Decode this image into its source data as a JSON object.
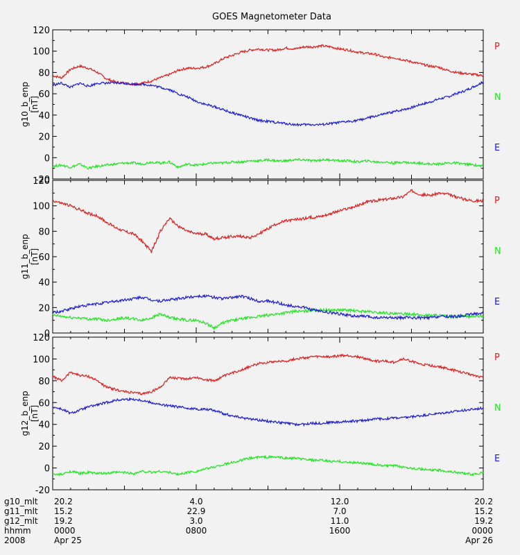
{
  "title": "GOES Magnetometer Data",
  "colors": {
    "P": "#e01b1b",
    "N": "#1ee61e",
    "E": "#1a1ad6",
    "frame": "#000000",
    "background": "#f2f2f2"
  },
  "chart_data": [
    {
      "type": "line",
      "ylabel": "g10_b_enp",
      "yunits": "[nT]",
      "ylim": [
        -20,
        120
      ],
      "yticks": [
        -20,
        0,
        20,
        40,
        60,
        80,
        100,
        120
      ],
      "xlabel": "hhmm",
      "xlim": [
        0,
        24
      ],
      "legend_placement": "right",
      "legend": [
        "P",
        "N",
        "E"
      ],
      "series": [
        {
          "name": "P",
          "color": "#e01b1b",
          "x": [
            0,
            0.5,
            1,
            1.5,
            2,
            2.5,
            3,
            3.5,
            4,
            4.5,
            5,
            5.5,
            6,
            6.5,
            7,
            7.5,
            8,
            8.5,
            9,
            9.5,
            10,
            10.5,
            11,
            11.5,
            12,
            12.5,
            13,
            13.5,
            14,
            14.5,
            15,
            15.5,
            16,
            16.5,
            17,
            17.5,
            18,
            18.5,
            19,
            19.5,
            20,
            20.5,
            21,
            21.5,
            22,
            22.5,
            23,
            23.5,
            24
          ],
          "y": [
            77,
            75,
            83,
            86,
            84,
            80,
            74,
            71,
            70,
            69,
            70,
            72,
            75,
            78,
            82,
            84,
            84,
            85,
            88,
            93,
            96,
            99,
            101,
            102,
            101,
            101,
            103,
            102,
            104,
            104,
            105,
            104,
            102,
            101,
            99,
            98,
            97,
            94,
            94,
            92,
            90,
            88,
            86,
            85,
            82,
            80,
            79,
            78,
            77
          ]
        },
        {
          "name": "N",
          "color": "#1ee61e",
          "x": [
            0,
            0.5,
            1,
            1.5,
            2,
            2.5,
            3,
            3.5,
            4,
            4.5,
            5,
            5.5,
            6,
            6.5,
            7,
            7.5,
            8,
            8.5,
            9,
            9.5,
            10,
            10.5,
            11,
            11.5,
            12,
            12.5,
            13,
            13.5,
            14,
            14.5,
            15,
            15.5,
            16,
            16.5,
            17,
            17.5,
            18,
            18.5,
            19,
            19.5,
            20,
            20.5,
            21,
            21.5,
            22,
            22.5,
            23,
            23.5,
            24
          ],
          "y": [
            -8,
            -7,
            -9,
            -6,
            -10,
            -8,
            -7,
            -6,
            -5,
            -5,
            -6,
            -4,
            -5,
            -4,
            -9,
            -6,
            -7,
            -6,
            -5,
            -5,
            -4,
            -4,
            -3,
            -3,
            -2,
            -3,
            -3,
            -2,
            -2,
            -3,
            -2,
            -2,
            -3,
            -3,
            -4,
            -3,
            -4,
            -4,
            -5,
            -4,
            -5,
            -5,
            -6,
            -6,
            -5,
            -5,
            -6,
            -7,
            -8
          ]
        },
        {
          "name": "E",
          "color": "#1a1ad6",
          "x": [
            0,
            0.5,
            1,
            1.5,
            2,
            2.5,
            3,
            3.5,
            4,
            4.5,
            5,
            5.5,
            6,
            6.5,
            7,
            7.5,
            8,
            8.5,
            9,
            9.5,
            10,
            10.5,
            11,
            11.5,
            12,
            12.5,
            13,
            13.5,
            14,
            14.5,
            15,
            15.5,
            16,
            16.5,
            17,
            17.5,
            18,
            18.5,
            19,
            19.5,
            20,
            20.5,
            21,
            21.5,
            22,
            22.5,
            23,
            23.5,
            24
          ],
          "y": [
            68,
            70,
            66,
            70,
            67,
            70,
            70,
            70,
            70,
            69,
            69,
            68,
            66,
            64,
            60,
            57,
            53,
            50,
            48,
            45,
            42,
            40,
            37,
            35,
            34,
            33,
            32,
            31,
            31,
            31,
            31,
            32,
            33,
            34,
            35,
            37,
            39,
            41,
            43,
            45,
            47,
            50,
            52,
            55,
            57,
            60,
            63,
            67,
            71
          ]
        }
      ]
    },
    {
      "type": "line",
      "ylabel": "g11_b_enp",
      "yunits": "[nT]",
      "ylim": [
        0,
        120
      ],
      "yticks": [
        0,
        20,
        40,
        60,
        80,
        100,
        120
      ],
      "xlabel": "hhmm",
      "xlim": [
        0,
        24
      ],
      "legend_placement": "right",
      "legend": [
        "P",
        "N",
        "E"
      ],
      "series": [
        {
          "name": "P",
          "color": "#e01b1b",
          "x": [
            0,
            0.5,
            1,
            1.5,
            2,
            2.5,
            3,
            3.5,
            4,
            4.5,
            5,
            5.5,
            6,
            6.5,
            7,
            7.5,
            8,
            8.5,
            9,
            9.5,
            10,
            10.5,
            11,
            11.5,
            12,
            12.5,
            13,
            13.5,
            14,
            14.5,
            15,
            15.5,
            16,
            16.5,
            17,
            17.5,
            18,
            18.5,
            19,
            19.5,
            20,
            20.5,
            21,
            21.5,
            22,
            22.5,
            23,
            23.5,
            24
          ],
          "y": [
            104,
            102,
            100,
            97,
            94,
            92,
            87,
            83,
            80,
            78,
            72,
            64,
            80,
            90,
            84,
            80,
            78,
            78,
            74,
            75,
            76,
            76,
            75,
            78,
            82,
            86,
            88,
            89,
            90,
            91,
            92,
            94,
            96,
            98,
            100,
            103,
            104,
            105,
            106,
            107,
            112,
            109,
            108,
            110,
            109,
            107,
            105,
            104,
            104
          ]
        },
        {
          "name": "N",
          "color": "#1ee61e",
          "x": [
            0,
            0.5,
            1,
            1.5,
            2,
            2.5,
            3,
            3.5,
            4,
            4.5,
            5,
            5.5,
            6,
            6.5,
            7,
            7.5,
            8,
            8.5,
            9,
            9.5,
            10,
            10.5,
            11,
            11.5,
            12,
            12.5,
            13,
            13.5,
            14,
            14.5,
            15,
            15.5,
            16,
            16.5,
            17,
            17.5,
            18,
            18.5,
            19,
            19.5,
            20,
            20.5,
            21,
            21.5,
            22,
            22.5,
            23,
            23.5,
            24
          ],
          "y": [
            14,
            13,
            12,
            12,
            11,
            11,
            10,
            11,
            12,
            11,
            10,
            12,
            15,
            12,
            11,
            10,
            10,
            8,
            4,
            8,
            10,
            11,
            12,
            13,
            14,
            15,
            16,
            17,
            17,
            18,
            18,
            18,
            18,
            18,
            17,
            17,
            16,
            16,
            15,
            15,
            15,
            14,
            14,
            14,
            13,
            13,
            13,
            13,
            13
          ]
        },
        {
          "name": "E",
          "color": "#1a1ad6",
          "x": [
            0,
            0.5,
            1,
            1.5,
            2,
            2.5,
            3,
            3.5,
            4,
            4.5,
            5,
            5.5,
            6,
            6.5,
            7,
            7.5,
            8,
            8.5,
            9,
            9.5,
            10,
            10.5,
            11,
            11.5,
            12,
            12.5,
            13,
            13.5,
            14,
            14.5,
            15,
            15.5,
            16,
            16.5,
            17,
            17.5,
            18,
            18.5,
            19,
            19.5,
            20,
            20.5,
            21,
            21.5,
            22,
            22.5,
            23,
            23.5,
            24
          ],
          "y": [
            16,
            17,
            19,
            21,
            22,
            23,
            24,
            25,
            26,
            27,
            28,
            26,
            25,
            26,
            27,
            28,
            29,
            29,
            28,
            27,
            28,
            29,
            27,
            25,
            25,
            24,
            22,
            21,
            20,
            18,
            17,
            16,
            15,
            14,
            13,
            13,
            12,
            12,
            12,
            12,
            12,
            12,
            12,
            13,
            13,
            13,
            14,
            15,
            16
          ]
        }
      ]
    },
    {
      "type": "line",
      "ylabel": "g12_b_enp",
      "yunits": "[nT]",
      "ylim": [
        -20,
        120
      ],
      "yticks": [
        -20,
        0,
        20,
        40,
        60,
        80,
        100,
        120
      ],
      "xlabel": "hhmm",
      "xlim": [
        0,
        24
      ],
      "legend_placement": "right",
      "legend": [
        "P",
        "N",
        "E"
      ],
      "series": [
        {
          "name": "P",
          "color": "#e01b1b",
          "x": [
            0,
            0.5,
            1,
            1.5,
            2,
            2.5,
            3,
            3.5,
            4,
            4.5,
            5,
            5.5,
            6,
            6.5,
            7,
            7.5,
            8,
            8.5,
            9,
            9.5,
            10,
            10.5,
            11,
            11.5,
            12,
            12.5,
            13,
            13.5,
            14,
            14.5,
            15,
            15.5,
            16,
            16.5,
            17,
            17.5,
            18,
            18.5,
            19,
            19.5,
            20,
            20.5,
            21,
            21.5,
            22,
            22.5,
            23,
            23.5,
            24
          ],
          "y": [
            84,
            80,
            88,
            85,
            84,
            80,
            74,
            72,
            70,
            69,
            68,
            70,
            74,
            83,
            82,
            82,
            83,
            81,
            80,
            84,
            87,
            90,
            93,
            96,
            97,
            98,
            98,
            100,
            101,
            102,
            102,
            102,
            103,
            103,
            102,
            100,
            98,
            98,
            97,
            100,
            98,
            95,
            94,
            93,
            91,
            89,
            87,
            85,
            83
          ]
        },
        {
          "name": "N",
          "color": "#1ee61e",
          "x": [
            0,
            0.5,
            1,
            1.5,
            2,
            2.5,
            3,
            3.5,
            4,
            4.5,
            5,
            5.5,
            6,
            6.5,
            7,
            7.5,
            8,
            8.5,
            9,
            9.5,
            10,
            10.5,
            11,
            11.5,
            12,
            12.5,
            13,
            13.5,
            14,
            14.5,
            15,
            15.5,
            16,
            16.5,
            17,
            17.5,
            18,
            18.5,
            19,
            19.5,
            20,
            20.5,
            21,
            21.5,
            22,
            22.5,
            23,
            23.5,
            24
          ],
          "y": [
            -6,
            -6,
            -3,
            -5,
            -4,
            -5,
            -5,
            -4,
            -4,
            -5,
            -3,
            -4,
            -3,
            -4,
            -6,
            -4,
            -3,
            -1,
            1,
            3,
            5,
            7,
            9,
            10,
            10,
            10,
            9,
            9,
            8,
            7,
            7,
            6,
            6,
            5,
            5,
            4,
            3,
            2,
            2,
            1,
            0,
            -1,
            -2,
            -2,
            -3,
            -4,
            -5,
            -6,
            -4
          ]
        },
        {
          "name": "E",
          "color": "#1a1ad6",
          "x": [
            0,
            0.5,
            1,
            1.5,
            2,
            2.5,
            3,
            3.5,
            4,
            4.5,
            5,
            5.5,
            6,
            6.5,
            7,
            7.5,
            8,
            8.5,
            9,
            9.5,
            10,
            10.5,
            11,
            11.5,
            12,
            12.5,
            13,
            13.5,
            14,
            14.5,
            15,
            15.5,
            16,
            16.5,
            17,
            17.5,
            18,
            18.5,
            19,
            19.5,
            20,
            20.5,
            21,
            21.5,
            22,
            22.5,
            23,
            23.5,
            24
          ],
          "y": [
            56,
            54,
            50,
            53,
            56,
            58,
            60,
            62,
            63,
            63,
            62,
            60,
            58,
            57,
            56,
            55,
            54,
            54,
            53,
            50,
            48,
            46,
            45,
            44,
            43,
            42,
            41,
            40,
            40,
            41,
            41,
            42,
            42,
            43,
            43,
            44,
            45,
            45,
            46,
            46,
            47,
            48,
            49,
            50,
            51,
            52,
            53,
            54,
            55
          ]
        }
      ]
    }
  ],
  "x_axis": {
    "row_labels": [
      "g10_mlt",
      "g11_mlt",
      "g12_mlt",
      "hhmm",
      "2008"
    ],
    "positions_hours": [
      0,
      8,
      16,
      24
    ],
    "columns": [
      [
        "20.2",
        "15.2",
        "19.2",
        "0000",
        "Apr 25"
      ],
      [
        "4.0",
        "22.9",
        "3.0",
        "0800",
        ""
      ],
      [
        "12.0",
        "7.0",
        "11.0",
        "1600",
        ""
      ],
      [
        "20.2",
        "15.2",
        "19.2",
        "0000",
        "Apr 26"
      ]
    ]
  }
}
